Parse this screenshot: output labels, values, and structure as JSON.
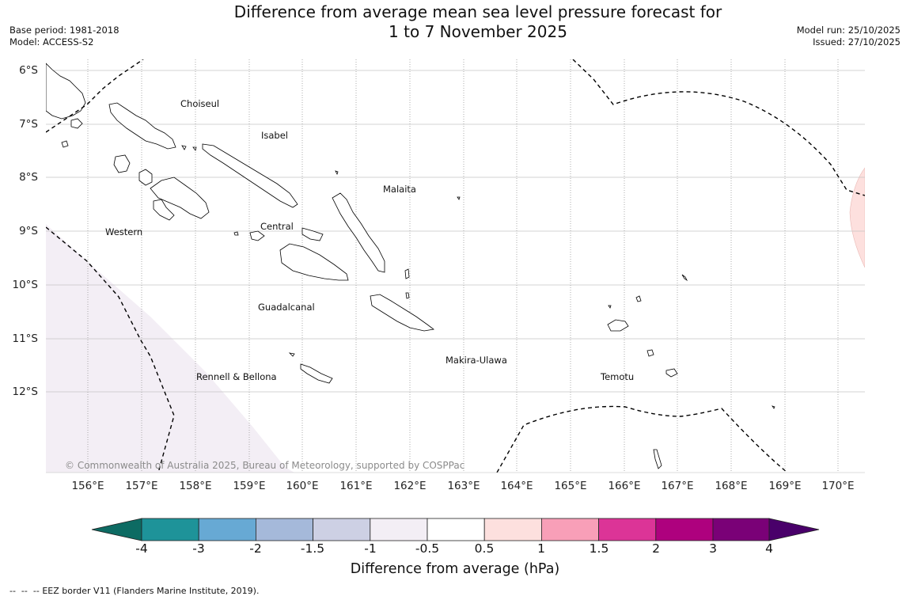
{
  "title": {
    "line1": "Difference from average mean sea level pressure forecast for",
    "line2": "1 to 7 November 2025"
  },
  "meta": {
    "base_period": "Base period: 1981-2018",
    "model": "Model: ACCESS-S2",
    "model_run": "Model run: 25/10/2025",
    "issued": "Issued: 27/10/2025"
  },
  "map": {
    "lon_range_deg": [
      155.2,
      170.5
    ],
    "lat_range_deg": [
      -13.5,
      -5.9
    ],
    "latitude_labels": [
      "6°S",
      "7°S",
      "8°S",
      "9°S",
      "10°S",
      "11°S",
      "12°S"
    ],
    "longitude_labels": [
      "156°E",
      "157°E",
      "158°E",
      "159°E",
      "160°E",
      "161°E",
      "162°E",
      "163°E",
      "164°E",
      "165°E",
      "166°E",
      "167°E",
      "168°E",
      "169°E",
      "170°E"
    ],
    "regions": [
      "Choiseul",
      "Isabel",
      "Malaita",
      "Western",
      "Central",
      "Guadalcanal",
      "Makira-Ulawa",
      "Rennell & Bellona",
      "Temotu"
    ],
    "anomaly_areas": [
      {
        "range": "-1 to -0.5 hPa",
        "location": "south-west corner",
        "color": "#f3eef5"
      },
      {
        "range": "0.5 to 1 hPa",
        "location": "east edge near 8-10°S",
        "color": "#fde0de"
      }
    ],
    "copyright": "© Commonwealth of Australia 2025, Bureau of Meteorology, supported by COSPPac"
  },
  "colorbar": {
    "ticks": [
      "-4",
      "-3",
      "-2",
      "-1.5",
      "-1",
      "-0.5",
      "0.5",
      "1",
      "1.5",
      "2",
      "3",
      "4"
    ],
    "colors": [
      "#0d6b63",
      "#1e9399",
      "#67a9d4",
      "#a5b9da",
      "#cdd0e4",
      "#f3eef5",
      "#ffffff",
      "#fde0de",
      "#f89fb8",
      "#dc3497",
      "#ae017e",
      "#7a0177",
      "#49006a"
    ],
    "label": "Difference from average (hPa)"
  },
  "legend": {
    "eez": "EEZ border V11 (Flanders Marine Institute, 2019)."
  }
}
